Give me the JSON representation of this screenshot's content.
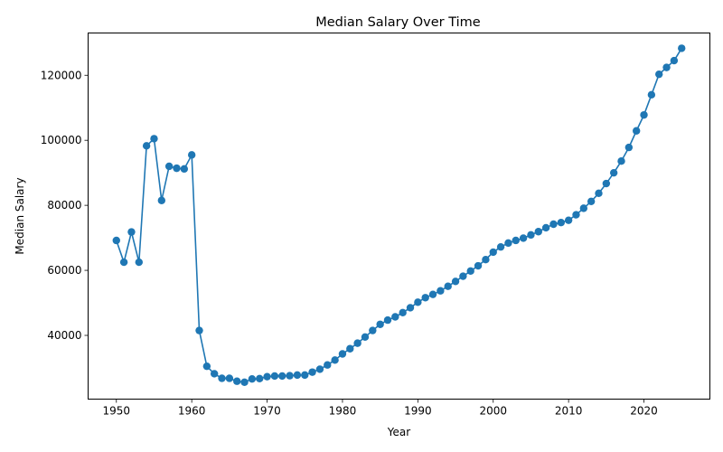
{
  "chart_data": {
    "type": "line",
    "title": "Median Salary Over Time",
    "xlabel": "Year",
    "ylabel": "Median Salary",
    "xlim": [
      1946.25,
      2028.75
    ],
    "ylim": [
      20400,
      133000
    ],
    "xticks": [
      1950,
      1960,
      1970,
      1980,
      1990,
      2000,
      2010,
      2020
    ],
    "yticks": [
      40000,
      60000,
      80000,
      100000,
      120000
    ],
    "grid": false,
    "markers": true,
    "colors": {
      "series": "#1f77b4"
    },
    "series": [
      {
        "x": [
          1950,
          1951,
          1952,
          1953,
          1954,
          1955,
          1956,
          1957,
          1958,
          1959,
          1960,
          1961,
          1962,
          1963,
          1964,
          1965,
          1966,
          1967,
          1968,
          1969,
          1970,
          1971,
          1972,
          1973,
          1974,
          1975,
          1976,
          1977,
          1978,
          1979,
          1980,
          1981,
          1982,
          1983,
          1984,
          1985,
          1986,
          1987,
          1988,
          1989,
          1990,
          1991,
          1992,
          1993,
          1994,
          1995,
          1996,
          1997,
          1998,
          1999,
          2000,
          2001,
          2002,
          2003,
          2004,
          2005,
          2006,
          2007,
          2008,
          2009,
          2010,
          2011,
          2012,
          2013,
          2014,
          2015,
          2016,
          2017,
          2018,
          2019,
          2020,
          2021,
          2022,
          2023,
          2024,
          2025
        ],
        "values": [
          69200,
          62500,
          71800,
          62500,
          98300,
          100500,
          81500,
          92000,
          91400,
          91200,
          95500,
          41500,
          30500,
          28200,
          26800,
          26800,
          25900,
          25600,
          26600,
          26700,
          27300,
          27500,
          27500,
          27600,
          27800,
          27800,
          28700,
          29600,
          30900,
          32400,
          34300,
          35900,
          37600,
          39500,
          41500,
          43400,
          44700,
          45700,
          47000,
          48500,
          50200,
          51600,
          52600,
          53700,
          55100,
          56600,
          58200,
          59800,
          61400,
          63300,
          65600,
          67200,
          68400,
          69200,
          69900,
          70900,
          71900,
          73100,
          74200,
          74700,
          75400,
          77100,
          79100,
          81200,
          83700,
          86700,
          90000,
          93600,
          97800,
          102900,
          107800,
          114000,
          120300,
          122400,
          124500,
          128300
        ]
      }
    ]
  }
}
